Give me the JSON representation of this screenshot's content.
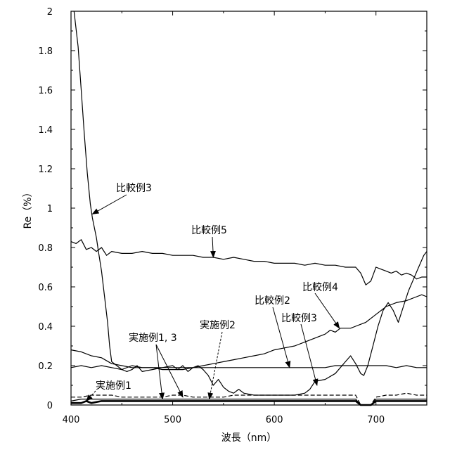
{
  "chart_data": {
    "type": "line",
    "xlabel": "波長（nm）",
    "ylabel": "Re（%）",
    "xlim": [
      400,
      750
    ],
    "ylim": [
      0,
      2
    ],
    "xticks": [
      "400",
      "500",
      "600",
      "700"
    ],
    "yticks": [
      "0",
      "0.2",
      "0.4",
      "0.6",
      "0.8",
      "1",
      "1.2",
      "1.4",
      "1.6",
      "1.8",
      "2"
    ],
    "grid": false,
    "series": [
      {
        "name": "比較例3",
        "style": "solid",
        "points": [
          [
            403,
            2.0
          ],
          [
            407,
            1.82
          ],
          [
            410,
            1.6
          ],
          [
            413,
            1.38
          ],
          [
            416,
            1.18
          ],
          [
            419,
            1.02
          ],
          [
            421,
            0.95
          ],
          [
            425,
            0.85
          ],
          [
            427,
            0.78
          ],
          [
            430,
            0.68
          ],
          [
            433,
            0.55
          ],
          [
            436,
            0.42
          ],
          [
            438,
            0.3
          ],
          [
            440,
            0.22
          ],
          [
            445,
            0.2
          ],
          [
            450,
            0.18
          ],
          [
            455,
            0.17
          ],
          [
            460,
            0.18
          ],
          [
            465,
            0.2
          ],
          [
            470,
            0.17
          ],
          [
            480,
            0.18
          ],
          [
            490,
            0.19
          ],
          [
            500,
            0.2
          ],
          [
            505,
            0.18
          ],
          [
            510,
            0.2
          ],
          [
            515,
            0.17
          ],
          [
            520,
            0.19
          ],
          [
            525,
            0.2
          ],
          [
            530,
            0.18
          ],
          [
            535,
            0.15
          ],
          [
            540,
            0.1
          ],
          [
            545,
            0.13
          ],
          [
            550,
            0.09
          ],
          [
            555,
            0.07
          ],
          [
            560,
            0.06
          ],
          [
            565,
            0.08
          ],
          [
            570,
            0.06
          ],
          [
            580,
            0.05
          ],
          [
            590,
            0.05
          ],
          [
            600,
            0.05
          ],
          [
            610,
            0.05
          ],
          [
            620,
            0.05
          ],
          [
            630,
            0.06
          ],
          [
            635,
            0.08
          ],
          [
            640,
            0.12
          ],
          [
            650,
            0.13
          ],
          [
            660,
            0.16
          ],
          [
            670,
            0.22
          ],
          [
            675,
            0.25
          ],
          [
            680,
            0.21
          ],
          [
            685,
            0.16
          ],
          [
            688,
            0.15
          ],
          [
            692,
            0.2
          ],
          [
            697,
            0.3
          ],
          [
            702,
            0.4
          ],
          [
            707,
            0.48
          ],
          [
            712,
            0.52
          ],
          [
            717,
            0.48
          ],
          [
            722,
            0.42
          ],
          [
            727,
            0.5
          ],
          [
            732,
            0.58
          ],
          [
            737,
            0.64
          ],
          [
            742,
            0.7
          ],
          [
            747,
            0.76
          ],
          [
            750,
            0.78
          ]
        ]
      },
      {
        "name": "比較例5",
        "style": "solid",
        "points": [
          [
            400,
            0.83
          ],
          [
            405,
            0.82
          ],
          [
            410,
            0.84
          ],
          [
            415,
            0.79
          ],
          [
            420,
            0.8
          ],
          [
            425,
            0.78
          ],
          [
            430,
            0.8
          ],
          [
            435,
            0.76
          ],
          [
            440,
            0.78
          ],
          [
            450,
            0.77
          ],
          [
            460,
            0.77
          ],
          [
            470,
            0.78
          ],
          [
            480,
            0.77
          ],
          [
            490,
            0.77
          ],
          [
            500,
            0.76
          ],
          [
            510,
            0.76
          ],
          [
            520,
            0.76
          ],
          [
            530,
            0.75
          ],
          [
            540,
            0.75
          ],
          [
            550,
            0.74
          ],
          [
            560,
            0.75
          ],
          [
            570,
            0.74
          ],
          [
            580,
            0.73
          ],
          [
            590,
            0.73
          ],
          [
            600,
            0.72
          ],
          [
            610,
            0.72
          ],
          [
            620,
            0.72
          ],
          [
            630,
            0.71
          ],
          [
            640,
            0.72
          ],
          [
            650,
            0.71
          ],
          [
            660,
            0.71
          ],
          [
            670,
            0.7
          ],
          [
            680,
            0.7
          ],
          [
            685,
            0.67
          ],
          [
            690,
            0.61
          ],
          [
            695,
            0.63
          ],
          [
            700,
            0.7
          ],
          [
            705,
            0.69
          ],
          [
            710,
            0.68
          ],
          [
            715,
            0.67
          ],
          [
            720,
            0.68
          ],
          [
            725,
            0.66
          ],
          [
            730,
            0.67
          ],
          [
            735,
            0.66
          ],
          [
            740,
            0.64
          ],
          [
            745,
            0.65
          ],
          [
            750,
            0.65
          ]
        ]
      },
      {
        "name": "比較例4",
        "style": "solid",
        "points": [
          [
            400,
            0.28
          ],
          [
            410,
            0.27
          ],
          [
            420,
            0.25
          ],
          [
            430,
            0.24
          ],
          [
            440,
            0.21
          ],
          [
            450,
            0.2
          ],
          [
            460,
            0.19
          ],
          [
            470,
            0.19
          ],
          [
            480,
            0.19
          ],
          [
            490,
            0.18
          ],
          [
            500,
            0.18
          ],
          [
            510,
            0.18
          ],
          [
            520,
            0.19
          ],
          [
            530,
            0.2
          ],
          [
            540,
            0.21
          ],
          [
            550,
            0.22
          ],
          [
            560,
            0.23
          ],
          [
            570,
            0.24
          ],
          [
            580,
            0.25
          ],
          [
            590,
            0.26
          ],
          [
            600,
            0.28
          ],
          [
            610,
            0.29
          ],
          [
            620,
            0.3
          ],
          [
            630,
            0.32
          ],
          [
            640,
            0.34
          ],
          [
            650,
            0.36
          ],
          [
            655,
            0.38
          ],
          [
            660,
            0.37
          ],
          [
            665,
            0.39
          ],
          [
            670,
            0.39
          ],
          [
            675,
            0.39
          ],
          [
            680,
            0.4
          ],
          [
            690,
            0.42
          ],
          [
            700,
            0.46
          ],
          [
            710,
            0.5
          ],
          [
            720,
            0.52
          ],
          [
            730,
            0.53
          ],
          [
            740,
            0.55
          ],
          [
            745,
            0.56
          ],
          [
            750,
            0.55
          ]
        ]
      },
      {
        "name": "比較例2",
        "style": "solid",
        "points": [
          [
            400,
            0.19
          ],
          [
            410,
            0.2
          ],
          [
            420,
            0.19
          ],
          [
            430,
            0.2
          ],
          [
            440,
            0.19
          ],
          [
            450,
            0.18
          ],
          [
            460,
            0.2
          ],
          [
            470,
            0.19
          ],
          [
            480,
            0.19
          ],
          [
            490,
            0.19
          ],
          [
            500,
            0.19
          ],
          [
            510,
            0.19
          ],
          [
            520,
            0.19
          ],
          [
            530,
            0.19
          ],
          [
            540,
            0.19
          ],
          [
            550,
            0.19
          ],
          [
            560,
            0.19
          ],
          [
            570,
            0.19
          ],
          [
            580,
            0.19
          ],
          [
            590,
            0.19
          ],
          [
            600,
            0.19
          ],
          [
            610,
            0.19
          ],
          [
            620,
            0.19
          ],
          [
            630,
            0.19
          ],
          [
            640,
            0.19
          ],
          [
            650,
            0.19
          ],
          [
            660,
            0.2
          ],
          [
            670,
            0.2
          ],
          [
            680,
            0.2
          ],
          [
            690,
            0.2
          ],
          [
            700,
            0.2
          ],
          [
            710,
            0.2
          ],
          [
            720,
            0.19
          ],
          [
            730,
            0.2
          ],
          [
            740,
            0.19
          ],
          [
            750,
            0.19
          ]
        ]
      },
      {
        "name": "実施例1,3",
        "style": "dashed",
        "points": [
          [
            400,
            0.04
          ],
          [
            410,
            0.04
          ],
          [
            420,
            0.05
          ],
          [
            430,
            0.05
          ],
          [
            440,
            0.05
          ],
          [
            450,
            0.04
          ],
          [
            460,
            0.04
          ],
          [
            470,
            0.04
          ],
          [
            480,
            0.04
          ],
          [
            490,
            0.04
          ],
          [
            500,
            0.05
          ],
          [
            510,
            0.05
          ],
          [
            520,
            0.04
          ],
          [
            530,
            0.04
          ],
          [
            540,
            0.04
          ],
          [
            550,
            0.04
          ],
          [
            560,
            0.05
          ],
          [
            570,
            0.05
          ],
          [
            580,
            0.05
          ],
          [
            590,
            0.05
          ],
          [
            600,
            0.05
          ],
          [
            610,
            0.05
          ],
          [
            620,
            0.05
          ],
          [
            630,
            0.05
          ],
          [
            640,
            0.05
          ],
          [
            650,
            0.05
          ],
          [
            660,
            0.05
          ],
          [
            670,
            0.05
          ],
          [
            680,
            0.05
          ],
          [
            685,
            0.0
          ],
          [
            695,
            0.0
          ],
          [
            700,
            0.04
          ],
          [
            710,
            0.05
          ],
          [
            720,
            0.05
          ],
          [
            730,
            0.06
          ],
          [
            740,
            0.05
          ],
          [
            750,
            0.05
          ]
        ]
      },
      {
        "name": "実施例2",
        "style": "solid",
        "points": [
          [
            400,
            0.02
          ],
          [
            410,
            0.03
          ],
          [
            420,
            0.03
          ],
          [
            430,
            0.03
          ],
          [
            440,
            0.03
          ],
          [
            450,
            0.03
          ],
          [
            460,
            0.03
          ],
          [
            470,
            0.03
          ],
          [
            480,
            0.03
          ],
          [
            490,
            0.03
          ],
          [
            500,
            0.03
          ],
          [
            510,
            0.03
          ],
          [
            520,
            0.03
          ],
          [
            530,
            0.03
          ],
          [
            540,
            0.03
          ],
          [
            550,
            0.03
          ],
          [
            560,
            0.03
          ],
          [
            570,
            0.03
          ],
          [
            580,
            0.03
          ],
          [
            590,
            0.03
          ],
          [
            600,
            0.03
          ],
          [
            610,
            0.03
          ],
          [
            620,
            0.03
          ],
          [
            630,
            0.03
          ],
          [
            640,
            0.03
          ],
          [
            650,
            0.03
          ],
          [
            660,
            0.03
          ],
          [
            670,
            0.03
          ],
          [
            680,
            0.03
          ],
          [
            685,
            0.0
          ],
          [
            695,
            0.0
          ],
          [
            700,
            0.03
          ],
          [
            710,
            0.03
          ],
          [
            720,
            0.03
          ],
          [
            730,
            0.03
          ],
          [
            740,
            0.03
          ],
          [
            750,
            0.03
          ]
        ]
      },
      {
        "name": "実施例1",
        "style": "bold",
        "points": [
          [
            400,
            0.01
          ],
          [
            410,
            0.01
          ],
          [
            415,
            0.02
          ],
          [
            420,
            0.01
          ],
          [
            430,
            0.02
          ],
          [
            440,
            0.02
          ],
          [
            450,
            0.02
          ],
          [
            460,
            0.02
          ],
          [
            470,
            0.02
          ],
          [
            480,
            0.02
          ],
          [
            490,
            0.02
          ],
          [
            500,
            0.02
          ],
          [
            510,
            0.02
          ],
          [
            520,
            0.02
          ],
          [
            530,
            0.02
          ],
          [
            540,
            0.02
          ],
          [
            550,
            0.02
          ],
          [
            560,
            0.02
          ],
          [
            570,
            0.02
          ],
          [
            580,
            0.02
          ],
          [
            590,
            0.02
          ],
          [
            600,
            0.02
          ],
          [
            610,
            0.02
          ],
          [
            620,
            0.02
          ],
          [
            630,
            0.02
          ],
          [
            640,
            0.02
          ],
          [
            650,
            0.02
          ],
          [
            660,
            0.02
          ],
          [
            670,
            0.02
          ],
          [
            680,
            0.02
          ],
          [
            685,
            0.0
          ],
          [
            695,
            0.0
          ],
          [
            700,
            0.02
          ],
          [
            710,
            0.02
          ],
          [
            720,
            0.02
          ],
          [
            730,
            0.02
          ],
          [
            740,
            0.02
          ],
          [
            750,
            0.02
          ]
        ]
      }
    ],
    "annotations": [
      {
        "id": "ann-hikaku3-a",
        "text": "比較例3",
        "tip": [
          421,
          0.97
        ]
      },
      {
        "id": "ann-hikaku5",
        "text": "比較例5",
        "tip": [
          540,
          0.75
        ]
      },
      {
        "id": "ann-hikaku4",
        "text": "比較例4",
        "tip": [
          664,
          0.39
        ]
      },
      {
        "id": "ann-hikaku2",
        "text": "比較例2",
        "tip": [
          615,
          0.19
        ]
      },
      {
        "id": "ann-hikaku3-b",
        "text": "比較例3",
        "tip": [
          642,
          0.1
        ]
      },
      {
        "id": "ann-jissi2",
        "text": "実施例2",
        "tip": [
          536,
          0.03
        ]
      },
      {
        "id": "ann-jissi13",
        "text": "実施例1, 3",
        "tips": [
          [
            490,
            0.03
          ],
          [
            510,
            0.04
          ]
        ]
      },
      {
        "id": "ann-jissi1",
        "text": "実施例1",
        "tip": [
          415,
          0.02
        ]
      }
    ]
  }
}
